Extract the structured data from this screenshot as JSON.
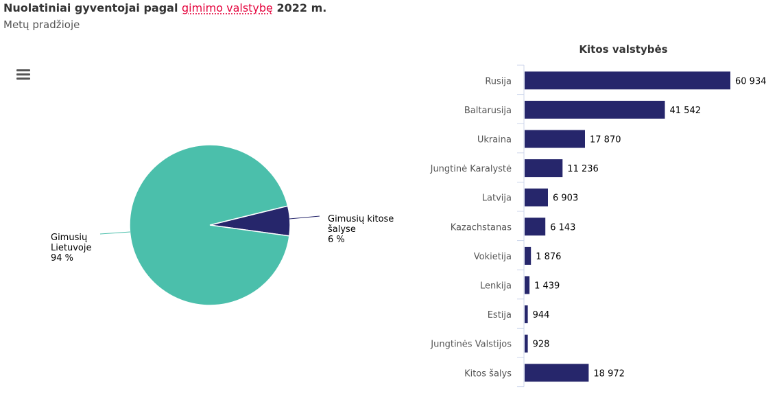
{
  "header": {
    "title_pre": "Nuolatiniai gyventojai pagal ",
    "title_link": "gimimo valstybę",
    "title_post": " 2022 m.",
    "subtitle": "Metų pradžioje"
  },
  "menu": {
    "icon": "hamburger-menu-icon"
  },
  "colors": {
    "teal": "#4bbfab",
    "navy": "#26266b",
    "link": "#e4003a"
  },
  "chart_data": [
    {
      "type": "pie",
      "title": "",
      "slices": [
        {
          "label_lines": [
            "Gimusių",
            "Lietuvoje",
            "94 %"
          ],
          "value": 94,
          "color": "#4bbfab"
        },
        {
          "label_lines": [
            "Gimusių kitose",
            "šalyse",
            "6 %"
          ],
          "value": 6,
          "color": "#26266b"
        }
      ]
    },
    {
      "type": "bar",
      "orientation": "horizontal",
      "title": "Kitos valstybės",
      "color": "#26266b",
      "categories": [
        "Rusija",
        "Baltarusija",
        "Ukraina",
        "Jungtinė Karalystė",
        "Latvija",
        "Kazachstanas",
        "Vokietija",
        "Lenkija",
        "Estija",
        "Jungtinės Valstijos",
        "Kitos šalys"
      ],
      "values": [
        60934,
        41542,
        17870,
        11236,
        6903,
        6143,
        1876,
        1439,
        944,
        928,
        18972
      ],
      "value_labels": [
        "60 934",
        "41 542",
        "17 870",
        "11 236",
        "6 903",
        "6 143",
        "1 876",
        "1 439",
        "944",
        "928",
        "18 972"
      ]
    }
  ]
}
